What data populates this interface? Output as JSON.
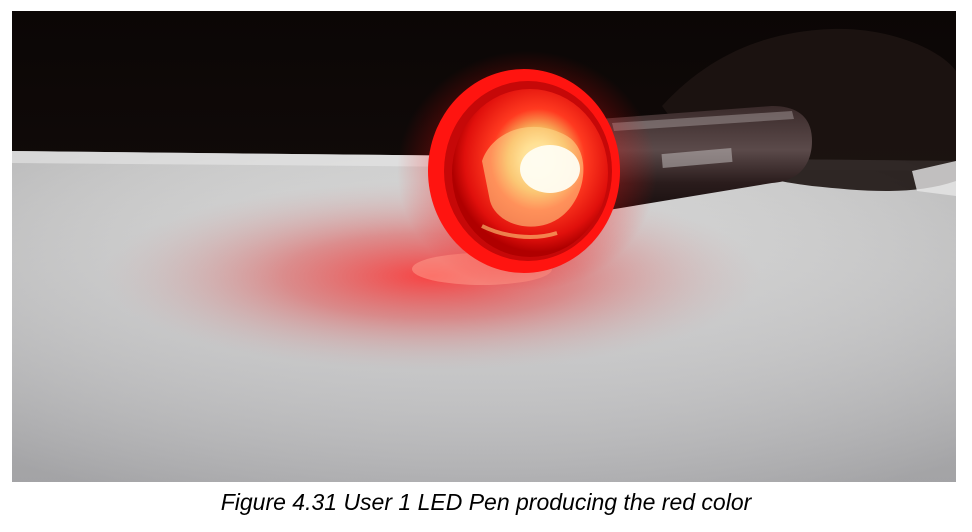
{
  "figure": {
    "caption": "Figure 4.31 User 1 LED Pen producing the red color",
    "image_subject": "led-pen-glowing-red",
    "colors": {
      "glow_red": "#ff1a1a",
      "glow_core": "#fff6c8",
      "background_dark": "#0a0606",
      "table_surface": "#bfbfc0"
    }
  }
}
